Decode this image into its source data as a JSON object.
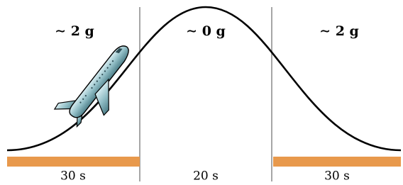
{
  "phases": [
    {
      "label": "∼ 2 g",
      "duration": "30 s"
    },
    {
      "label": "∼ 0 g",
      "duration": "20 s"
    },
    {
      "label": "∼ 2 g",
      "duration": "30 s"
    }
  ]
}
